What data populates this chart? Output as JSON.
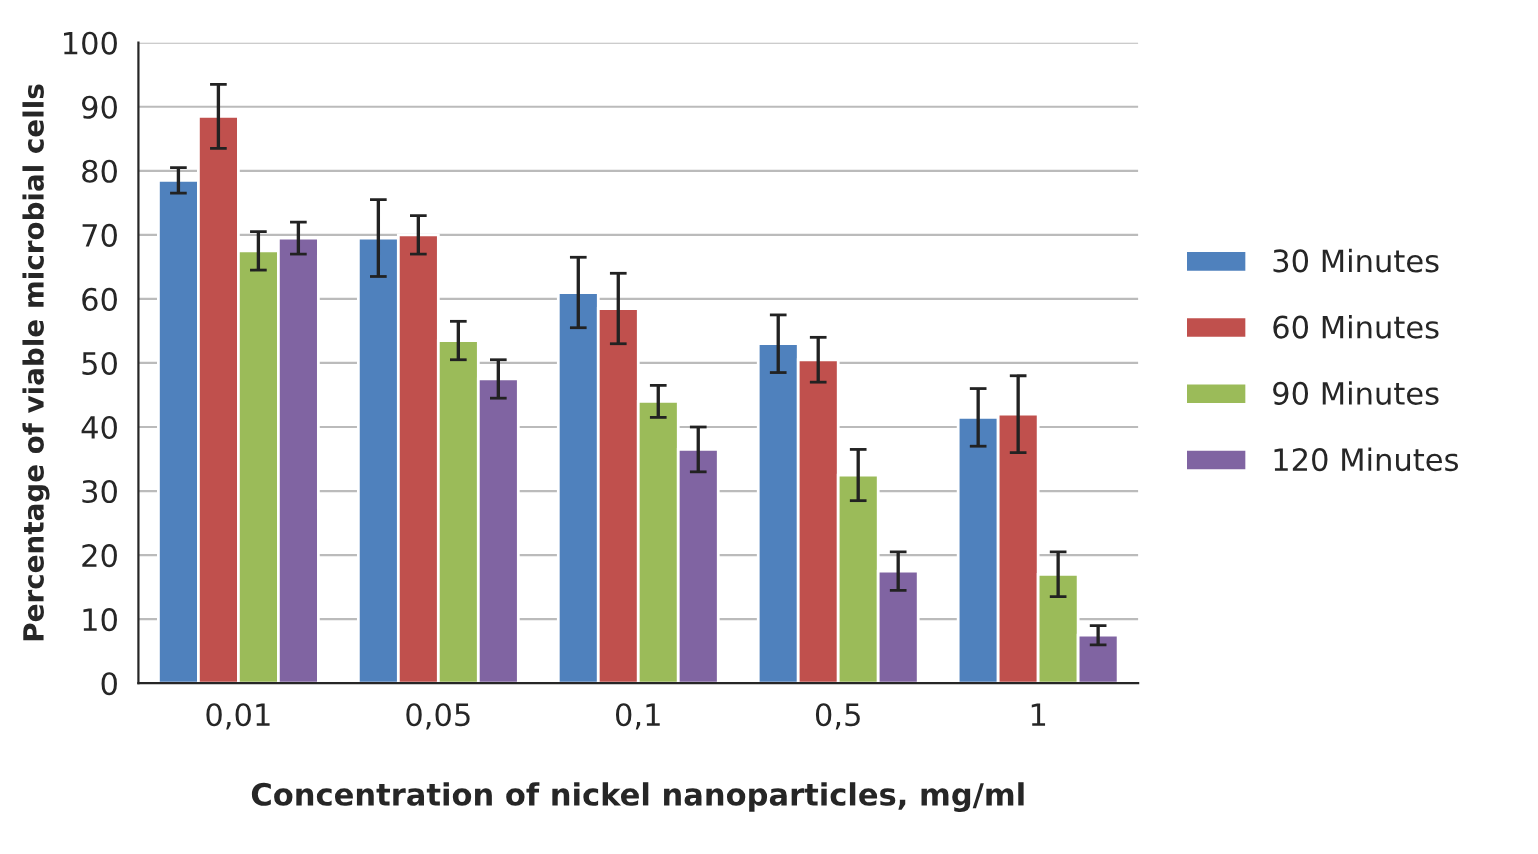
{
  "chart_data": {
    "type": "bar",
    "xlabel": "Concentration of nickel nanoparticles, mg/ml",
    "ylabel": "Percentage of viable microbial cells",
    "categories": [
      "0,01",
      "0,05",
      "0,1",
      "0,5",
      "1"
    ],
    "series": [
      {
        "name": "30 Minutes",
        "color": "#4f81bd",
        "values": [
          78.5,
          69.5,
          61,
          53,
          41.5
        ],
        "errors": [
          2,
          6,
          5.5,
          4.5,
          4.5
        ]
      },
      {
        "name": "60 Minutes",
        "color": "#c0504d",
        "values": [
          88.5,
          70,
          58.5,
          50.5,
          42
        ],
        "errors": [
          5,
          3,
          5.5,
          3.5,
          6
        ]
      },
      {
        "name": "90 Minutes",
        "color": "#9bbb59",
        "values": [
          67.5,
          53.5,
          44,
          32.5,
          17
        ],
        "errors": [
          3,
          3,
          2.5,
          4,
          3.5
        ]
      },
      {
        "name": "120 Minutes",
        "color": "#8064a2",
        "values": [
          69.5,
          47.5,
          36.5,
          17.5,
          7.5
        ],
        "errors": [
          2.5,
          3,
          3.5,
          3,
          1.5
        ]
      }
    ],
    "ylim": [
      0,
      100
    ],
    "yticks": [
      0,
      10,
      20,
      30,
      40,
      50,
      60,
      70,
      80,
      90,
      100
    ],
    "grid": "y",
    "legend": "right"
  }
}
